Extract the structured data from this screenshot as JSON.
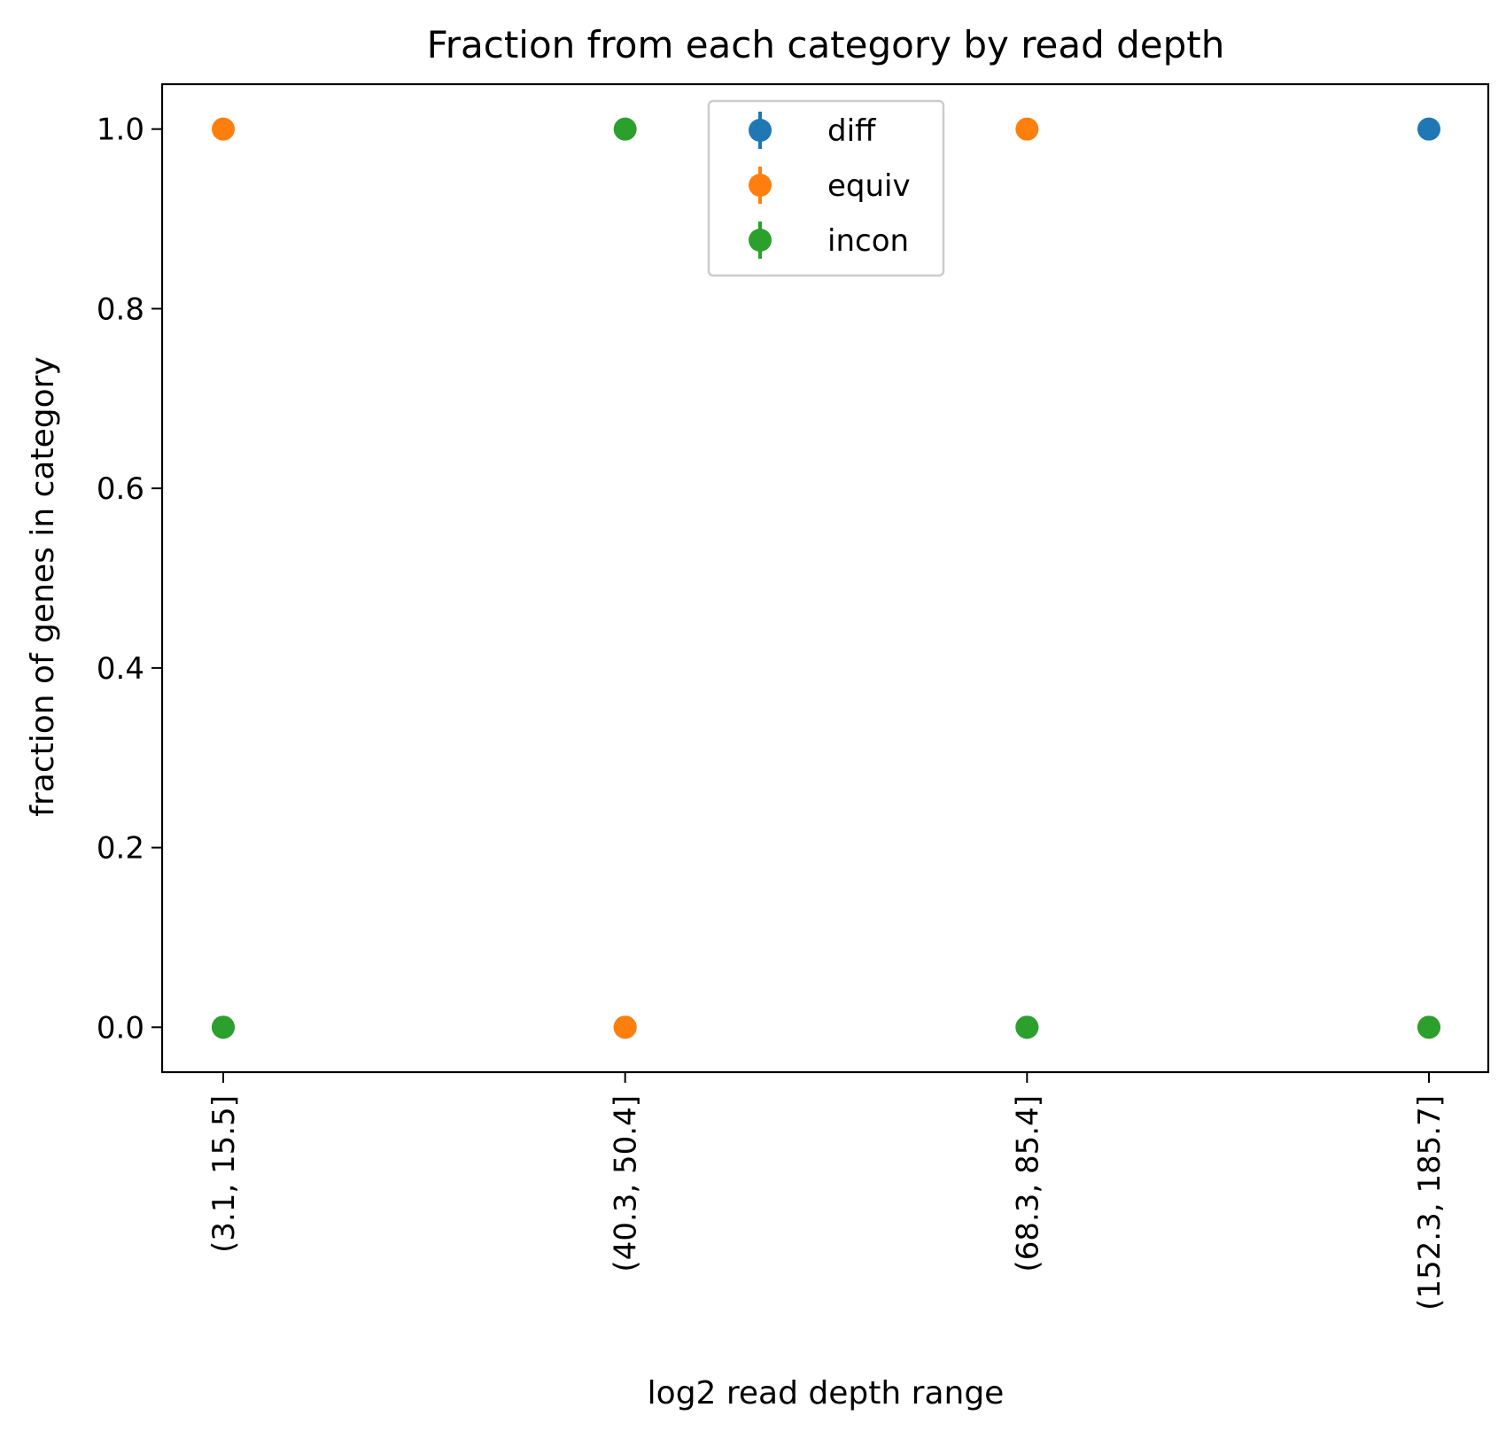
{
  "chart_data": {
    "type": "scatter",
    "title": "Fraction from each category by read depth",
    "xlabel": "log2 read depth range",
    "ylabel": "fraction of genes in category",
    "categories": [
      "(3.1, 15.5]",
      "(40.3, 50.4]",
      "(68.3, 85.4]",
      "(152.3, 185.7]"
    ],
    "ylim": [
      -0.05,
      1.05
    ],
    "yticks": [
      "0.0",
      "0.2",
      "0.4",
      "0.6",
      "0.8",
      "1.0"
    ],
    "grid": false,
    "legend_position": "top-center",
    "series": [
      {
        "name": "diff",
        "color": "#1f77b4",
        "values": [
          0.0,
          0.0,
          0.0,
          1.0
        ]
      },
      {
        "name": "equiv",
        "color": "#ff7f0e",
        "values": [
          1.0,
          0.0,
          1.0,
          0.0
        ]
      },
      {
        "name": "incon",
        "color": "#2ca02c",
        "values": [
          0.0,
          1.0,
          0.0,
          0.0
        ]
      }
    ]
  }
}
